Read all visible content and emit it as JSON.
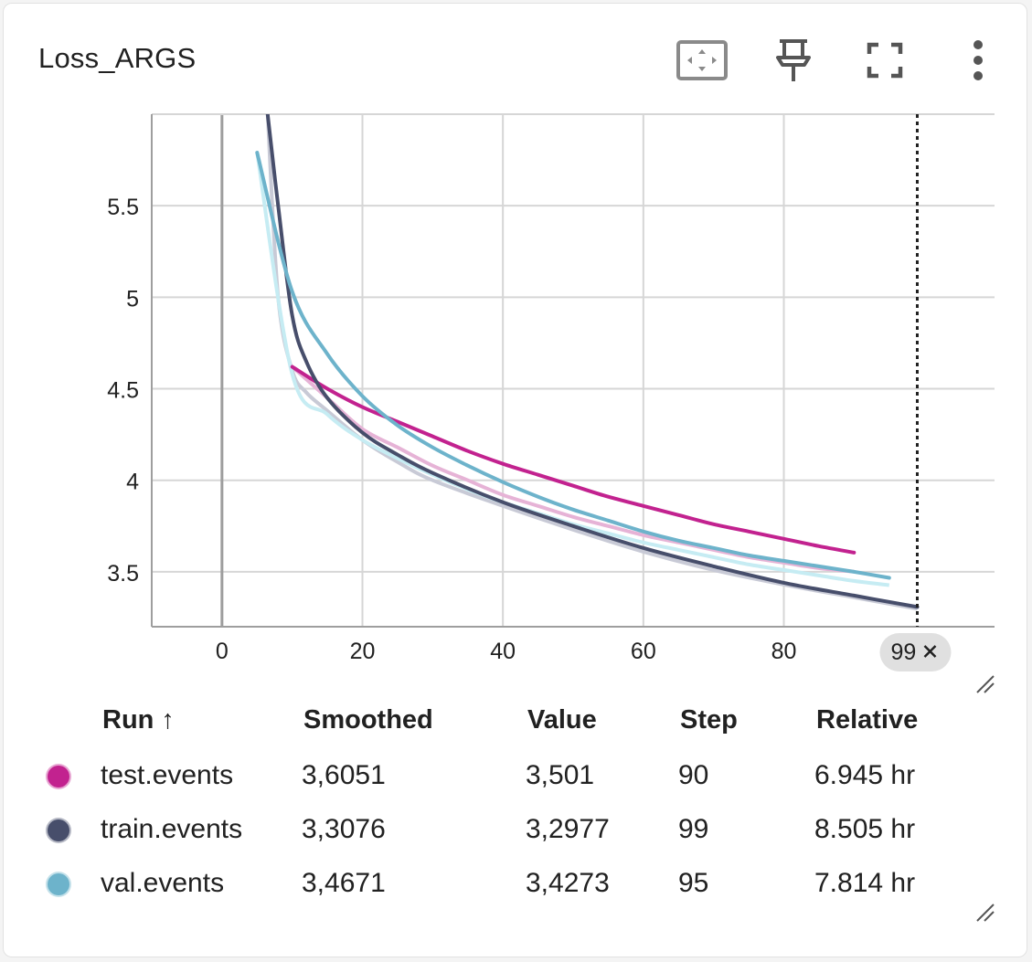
{
  "card": {
    "title": "Loss_ARGS"
  },
  "toolbar": {
    "fit_icon": "fit-domain-icon",
    "pin_icon": "pin-icon",
    "fullscreen_icon": "fullscreen-icon",
    "menu_icon": "more-vert-icon"
  },
  "chart_data": {
    "type": "line",
    "title": "Loss_ARGS",
    "xlabel": "",
    "ylabel": "",
    "xlim": [
      -10,
      110
    ],
    "ylim": [
      3.2,
      6.0
    ],
    "xticks": [
      0,
      20,
      40,
      60,
      80
    ],
    "yticks": [
      3.5,
      4,
      4.5,
      5,
      5.5
    ],
    "grid": true,
    "hover_step_label": "99",
    "series": [
      {
        "name": "test.events",
        "color": "#c2228f",
        "raw_color": "#e6b3d6",
        "x": [
          10,
          15,
          20,
          25,
          30,
          35,
          40,
          45,
          50,
          55,
          60,
          65,
          70,
          75,
          80,
          85,
          90
        ],
        "smoothed": [
          4.62,
          4.5,
          4.4,
          4.32,
          4.24,
          4.16,
          4.09,
          4.03,
          3.97,
          3.91,
          3.86,
          3.81,
          3.76,
          3.72,
          3.68,
          3.64,
          3.605
        ],
        "raw": [
          4.62,
          4.45,
          4.28,
          4.18,
          4.08,
          4.0,
          3.92,
          3.86,
          3.8,
          3.75,
          3.7,
          3.66,
          3.62,
          3.58,
          3.55,
          3.52,
          3.501
        ]
      },
      {
        "name": "train.events",
        "color": "#474e6b",
        "raw_color": "#c8cad6",
        "x": [
          6.5,
          8,
          10,
          12,
          15,
          20,
          25,
          30,
          40,
          50,
          60,
          70,
          80,
          90,
          99
        ],
        "smoothed": [
          6.0,
          5.5,
          4.9,
          4.65,
          4.45,
          4.26,
          4.14,
          4.04,
          3.88,
          3.75,
          3.63,
          3.53,
          3.44,
          3.37,
          3.3076
        ],
        "raw": [
          6.0,
          5.0,
          4.6,
          4.48,
          4.38,
          4.22,
          4.1,
          4.0,
          3.86,
          3.73,
          3.61,
          3.51,
          3.43,
          3.36,
          3.2977
        ]
      },
      {
        "name": "val.events",
        "color": "#6db3cb",
        "raw_color": "#c6ecf3",
        "x": [
          5,
          10,
          15,
          20,
          25,
          30,
          35,
          40,
          45,
          50,
          55,
          60,
          65,
          70,
          75,
          80,
          85,
          90,
          95
        ],
        "smoothed": [
          5.79,
          5.03,
          4.69,
          4.46,
          4.3,
          4.18,
          4.08,
          3.99,
          3.91,
          3.84,
          3.78,
          3.72,
          3.67,
          3.63,
          3.59,
          3.56,
          3.53,
          3.5,
          3.4671
        ],
        "raw": [
          5.79,
          4.58,
          4.36,
          4.22,
          4.12,
          4.03,
          3.95,
          3.88,
          3.82,
          3.76,
          3.71,
          3.66,
          3.62,
          3.58,
          3.54,
          3.51,
          3.48,
          3.45,
          3.4273
        ]
      }
    ]
  },
  "table": {
    "headers": {
      "run": "Run ↑",
      "smoothed": "Smoothed",
      "value": "Value",
      "step": "Step",
      "relative": "Relative"
    },
    "rows": [
      {
        "run": "test.events",
        "color": "#c2228f",
        "smoothed": "3,6051",
        "value": "3,501",
        "step": "90",
        "relative": "6.945 hr"
      },
      {
        "run": "train.events",
        "color": "#474e6b",
        "smoothed": "3,3076",
        "value": "3,2977",
        "step": "99",
        "relative": "8.505 hr"
      },
      {
        "run": "val.events",
        "color": "#6db3cb",
        "smoothed": "3,4671",
        "value": "3,4273",
        "step": "95",
        "relative": "7.814 hr"
      }
    ]
  }
}
